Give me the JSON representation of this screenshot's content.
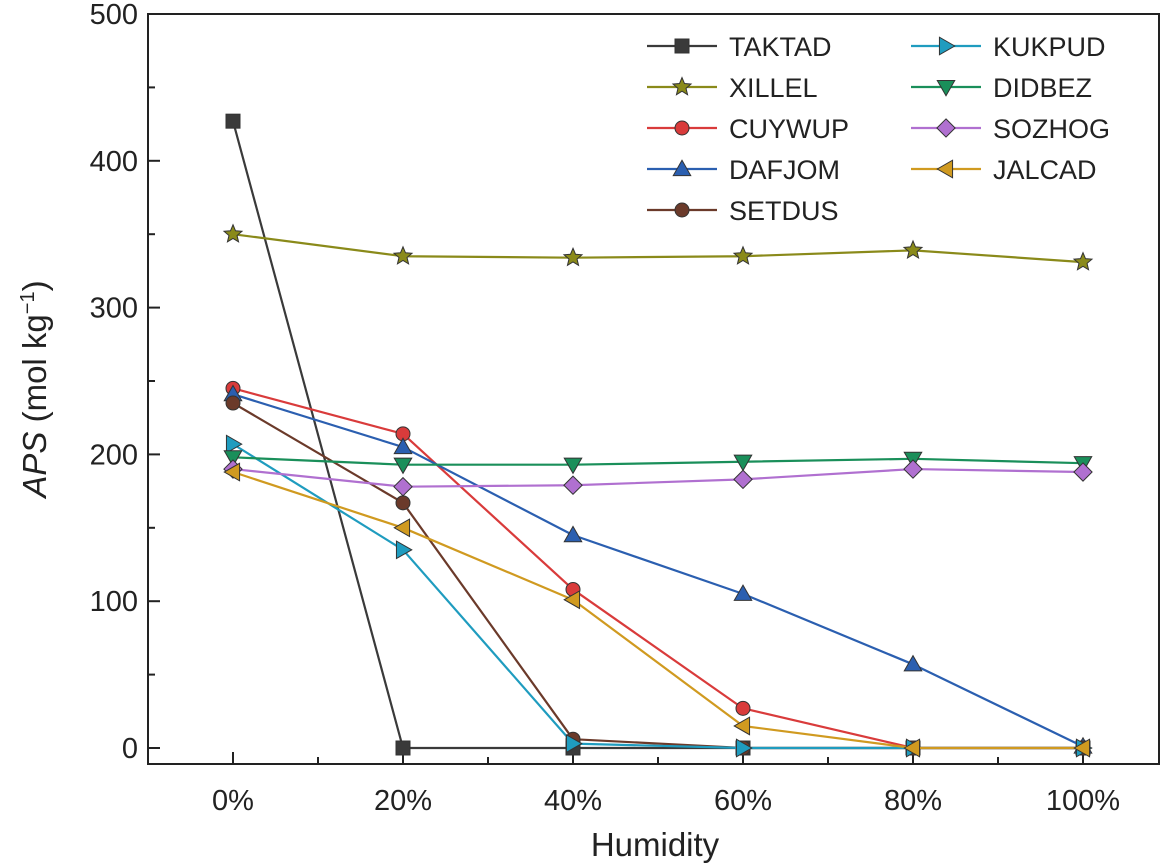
{
  "chart_data": {
    "type": "line",
    "categories": [
      "0%",
      "20%",
      "40%",
      "60%",
      "80%",
      "100%"
    ],
    "xlabel": "Humidity",
    "ylabel_main": "APS",
    "ylabel_unit": " (mol kg",
    "ylabel_sup": "−1",
    "ylabel_close": ")",
    "ylim": [
      0,
      500
    ],
    "yticks": [
      0,
      100,
      200,
      300,
      400,
      500
    ],
    "ytick_labels": [
      "0",
      "100",
      "200",
      "300",
      "400",
      "500"
    ],
    "grid": false,
    "legend_position": "top-right",
    "series": [
      {
        "name": "TAKTAD",
        "color": "#3a3a3a",
        "marker": "square",
        "values": [
          427,
          0,
          0,
          0,
          0,
          0
        ]
      },
      {
        "name": "XILLEL",
        "color": "#8a8a1a",
        "marker": "star",
        "values": [
          350,
          335,
          334,
          335,
          339,
          331
        ]
      },
      {
        "name": "CUYWUP",
        "color": "#d93b3b",
        "marker": "circle",
        "values": [
          245,
          214,
          108,
          27,
          0,
          0
        ]
      },
      {
        "name": "DAFJOM",
        "color": "#2b5fb0",
        "marker": "triangle-up",
        "values": [
          241,
          205,
          145,
          105,
          57,
          1
        ]
      },
      {
        "name": "SETDUS",
        "color": "#6b3a2a",
        "marker": "circle",
        "values": [
          235,
          167,
          6,
          0,
          0,
          0
        ]
      },
      {
        "name": "KUKPUD",
        "color": "#1f9cbf",
        "marker": "triangle-right",
        "values": [
          207,
          135,
          3,
          0,
          0,
          0
        ]
      },
      {
        "name": "DIDBEZ",
        "color": "#1a8f5a",
        "marker": "triangle-down",
        "values": [
          198,
          193,
          193,
          195,
          197,
          194
        ]
      },
      {
        "name": "SOZHOG",
        "color": "#b070d0",
        "marker": "diamond",
        "values": [
          190,
          178,
          179,
          183,
          190,
          188
        ]
      },
      {
        "name": "JALCAD",
        "color": "#d09a20",
        "marker": "triangle-left",
        "values": [
          188,
          150,
          101,
          15,
          0,
          0
        ]
      }
    ]
  }
}
